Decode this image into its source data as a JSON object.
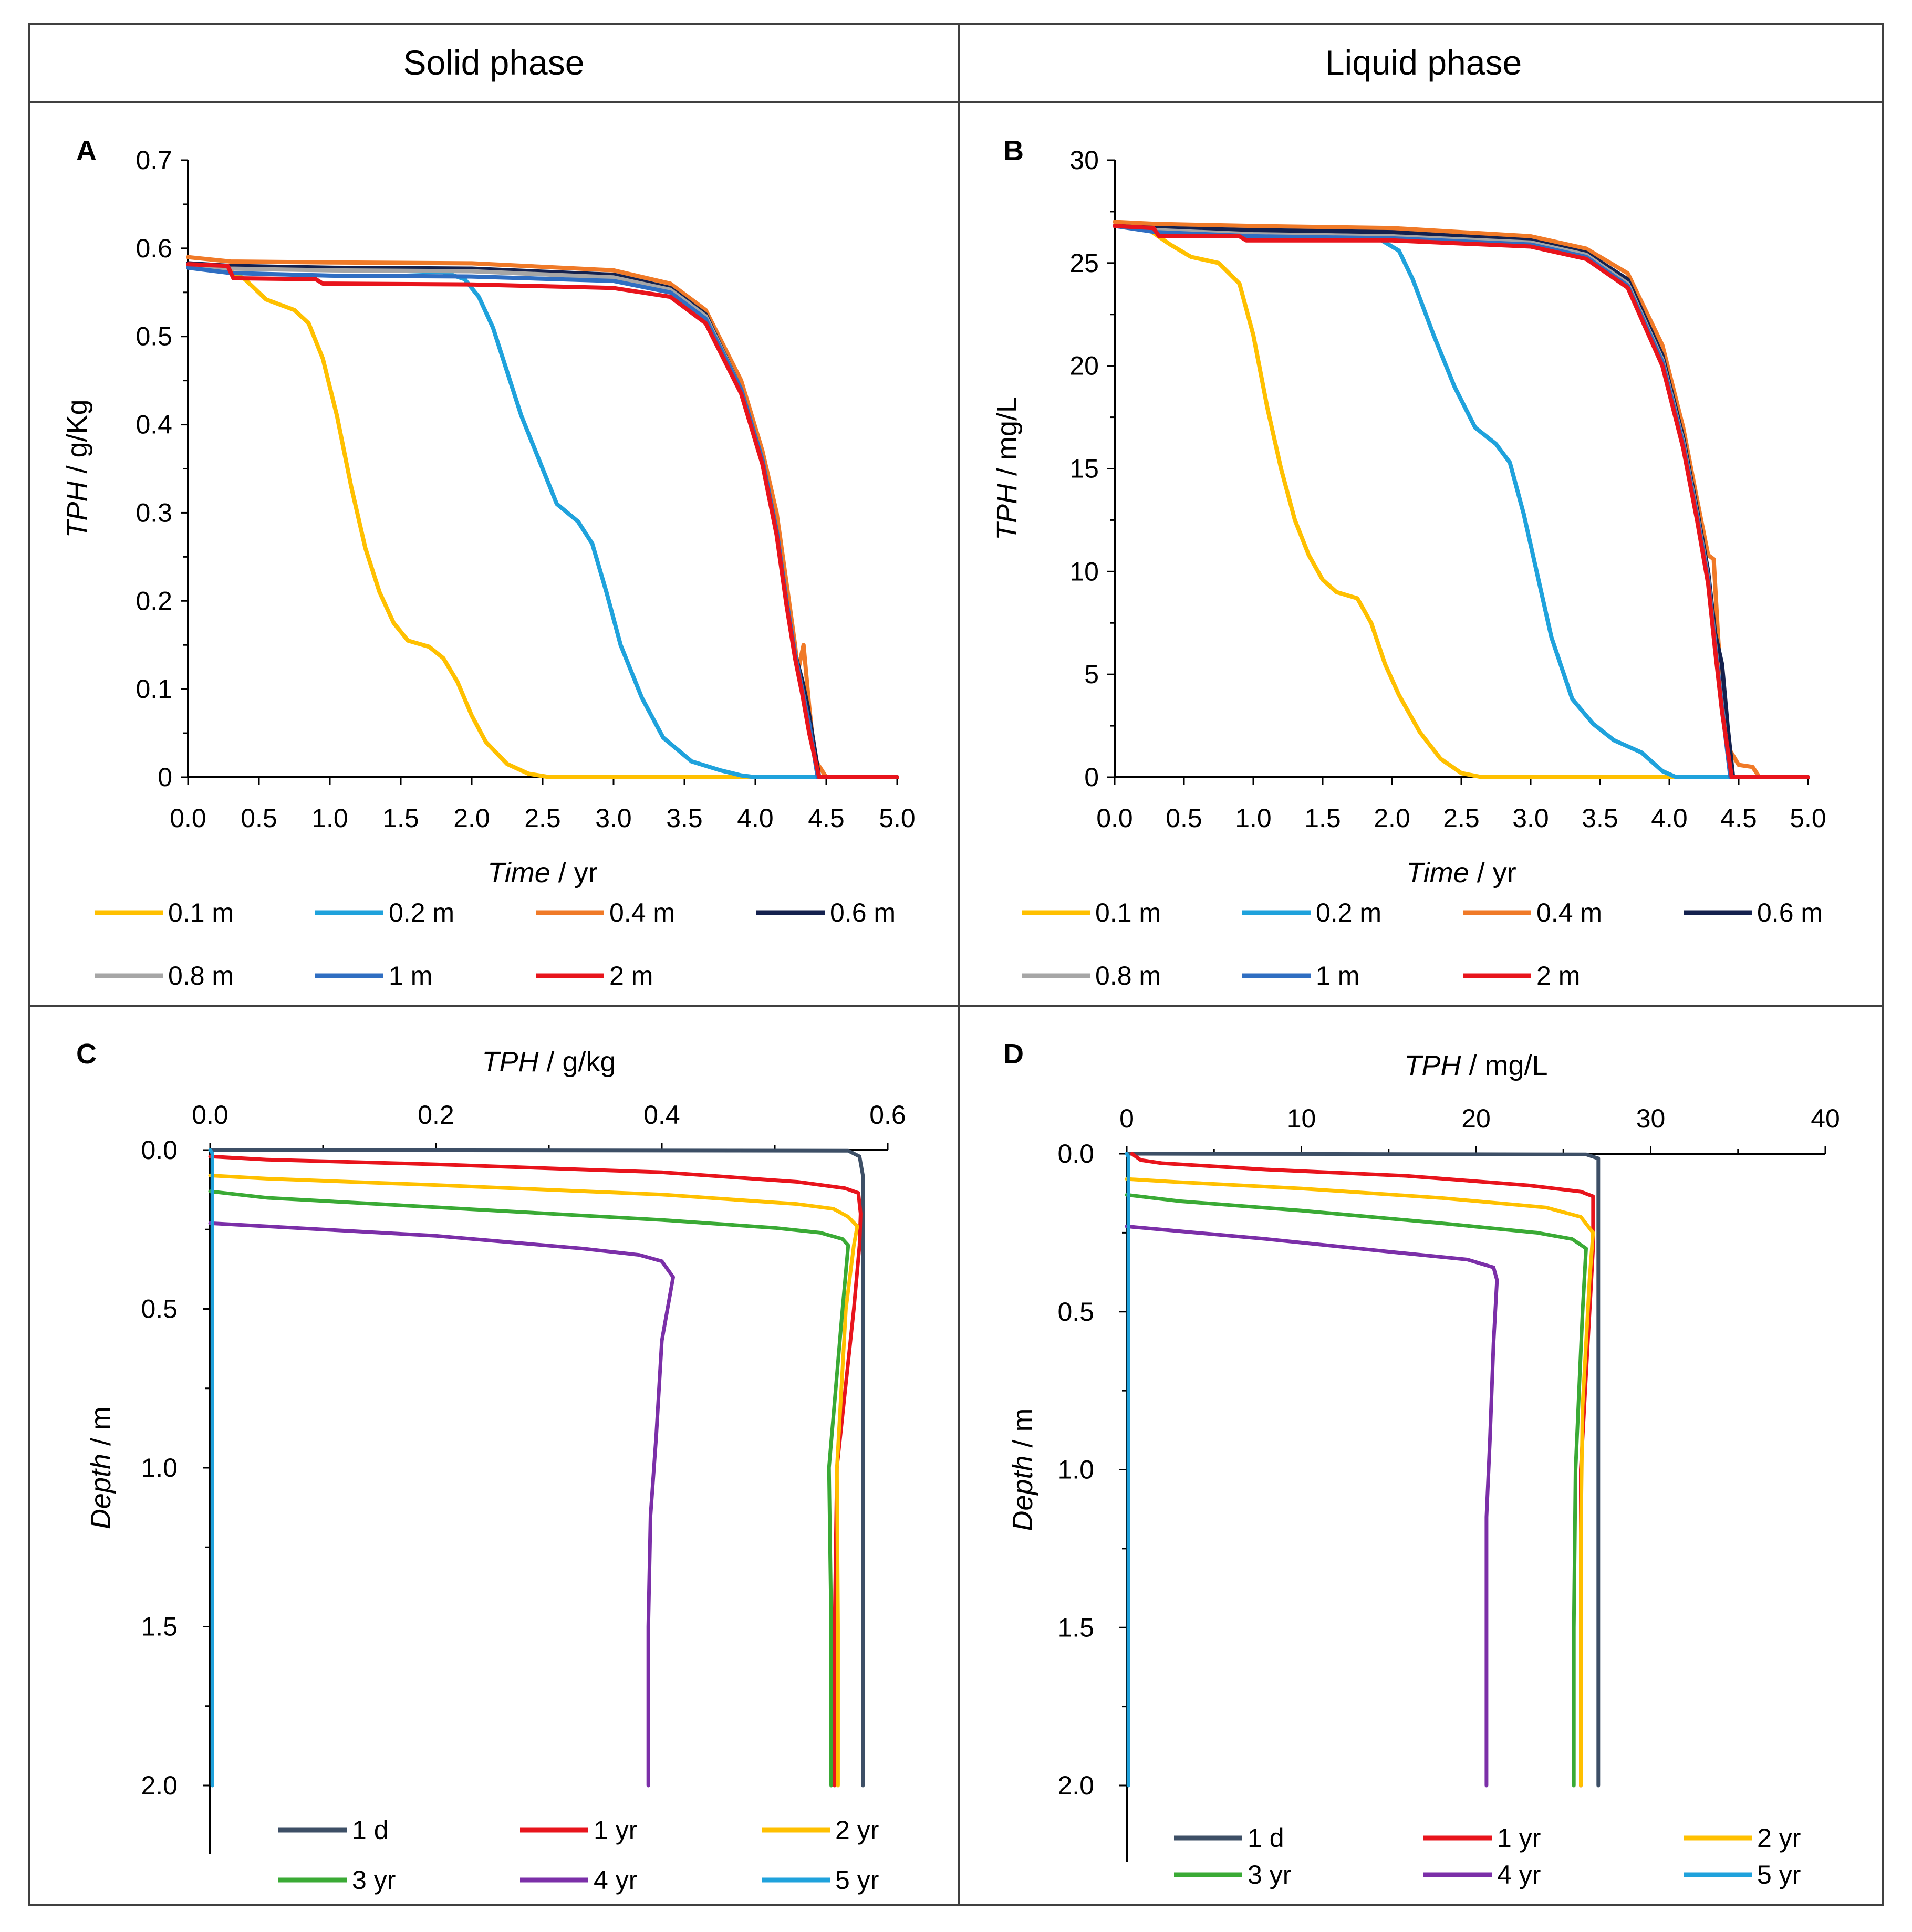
{
  "headers": {
    "solid": "Solid phase",
    "liquid": "Liquid phase"
  },
  "chart_data": [
    {
      "panel": "A",
      "type": "line",
      "xlabel_italic": "Time",
      "xlabel_rest": " / yr",
      "ylabel_italic": "TPH",
      "ylabel_rest": " / g/Kg",
      "xlim": [
        0,
        5
      ],
      "ylim": [
        0,
        0.7
      ],
      "x_ticks": [
        "0.0",
        "0.5",
        "1.0",
        "1.5",
        "2.0",
        "2.5",
        "3.0",
        "3.5",
        "4.0",
        "4.5",
        "5.0"
      ],
      "y_ticks": [
        "0",
        "0.1",
        "0.2",
        "0.3",
        "0.4",
        "0.5",
        "0.6",
        "0.7"
      ],
      "legend_position": "bottom",
      "series": [
        {
          "name": "0.1 m",
          "color": "#FFC000",
          "x": [
            0,
            0.25,
            0.4,
            0.55,
            0.75,
            0.85,
            0.95,
            1.05,
            1.15,
            1.25,
            1.35,
            1.45,
            1.55,
            1.7,
            1.8,
            1.9,
            2.0,
            2.1,
            2.25,
            2.4,
            2.55,
            5.0
          ],
          "y": [
            0.582,
            0.578,
            0.565,
            0.542,
            0.53,
            0.515,
            0.475,
            0.41,
            0.33,
            0.26,
            0.21,
            0.175,
            0.155,
            0.148,
            0.135,
            0.108,
            0.07,
            0.04,
            0.015,
            0.004,
            0,
            0
          ]
        },
        {
          "name": "0.2 m",
          "color": "#1FA2DC",
          "x": [
            0,
            0.3,
            1.0,
            1.8,
            1.95,
            2.05,
            2.15,
            2.25,
            2.35,
            2.5,
            2.6,
            2.75,
            2.85,
            2.95,
            3.05,
            3.2,
            3.35,
            3.55,
            3.75,
            3.9,
            4.0,
            5.0
          ],
          "y": [
            0.58,
            0.578,
            0.577,
            0.573,
            0.565,
            0.545,
            0.51,
            0.46,
            0.41,
            0.35,
            0.31,
            0.29,
            0.265,
            0.21,
            0.15,
            0.09,
            0.045,
            0.018,
            0.008,
            0.002,
            0,
            0
          ]
        },
        {
          "name": "0.4 m",
          "color": "#F07A28",
          "x": [
            0,
            0.3,
            1.0,
            2.0,
            3.0,
            3.4,
            3.65,
            3.9,
            4.05,
            4.15,
            4.22,
            4.28,
            4.3,
            4.34,
            4.38,
            4.42,
            4.5,
            5.0
          ],
          "y": [
            0.59,
            0.585,
            0.584,
            0.583,
            0.575,
            0.56,
            0.53,
            0.45,
            0.37,
            0.3,
            0.22,
            0.15,
            0.12,
            0.15,
            0.08,
            0.02,
            0,
            0
          ]
        },
        {
          "name": "0.6 m",
          "color": "#14214E",
          "x": [
            0,
            0.3,
            1.0,
            2.0,
            3.0,
            3.4,
            3.65,
            3.9,
            4.05,
            4.15,
            4.22,
            4.28,
            4.33,
            4.37,
            4.41,
            4.45,
            5.0
          ],
          "y": [
            0.583,
            0.58,
            0.578,
            0.577,
            0.57,
            0.555,
            0.525,
            0.44,
            0.36,
            0.28,
            0.2,
            0.14,
            0.11,
            0.08,
            0.04,
            0,
            0
          ]
        },
        {
          "name": "0.8 m",
          "color": "#A6A6A6",
          "x": [
            0,
            0.3,
            1.0,
            2.0,
            3.0,
            3.4,
            3.65,
            3.9,
            4.05,
            4.15,
            4.22,
            4.28,
            4.33,
            4.38,
            4.44,
            5.0
          ],
          "y": [
            0.58,
            0.577,
            0.575,
            0.574,
            0.567,
            0.553,
            0.523,
            0.44,
            0.36,
            0.28,
            0.2,
            0.14,
            0.1,
            0.06,
            0,
            0
          ]
        },
        {
          "name": "1 m",
          "color": "#2F6EC2",
          "x": [
            0,
            0.3,
            1.0,
            2.0,
            3.0,
            3.4,
            3.65,
            3.9,
            4.05,
            4.15,
            4.22,
            4.28,
            4.33,
            4.38,
            4.44,
            5.0
          ],
          "y": [
            0.578,
            0.572,
            0.569,
            0.568,
            0.563,
            0.55,
            0.52,
            0.44,
            0.36,
            0.28,
            0.2,
            0.14,
            0.1,
            0.06,
            0,
            0
          ]
        },
        {
          "name": "2 m",
          "color": "#E8141C",
          "x": [
            0,
            0.28,
            0.32,
            0.9,
            0.95,
            2.0,
            3.0,
            3.4,
            3.65,
            3.9,
            4.05,
            4.15,
            4.22,
            4.28,
            4.33,
            4.38,
            4.45,
            5.0
          ],
          "y": [
            0.582,
            0.58,
            0.566,
            0.565,
            0.56,
            0.559,
            0.555,
            0.545,
            0.515,
            0.435,
            0.355,
            0.275,
            0.195,
            0.135,
            0.095,
            0.05,
            0,
            0
          ]
        }
      ]
    },
    {
      "panel": "B",
      "type": "line",
      "xlabel_italic": "Time",
      "xlabel_rest": " / yr",
      "ylabel_italic": "TPH",
      "ylabel_rest": " / mg/L",
      "xlim": [
        0,
        5
      ],
      "ylim": [
        0,
        30
      ],
      "x_ticks": [
        "0.0",
        "0.5",
        "1.0",
        "1.5",
        "2.0",
        "2.5",
        "3.0",
        "3.5",
        "4.0",
        "4.5",
        "5.0"
      ],
      "y_ticks": [
        "0",
        "5",
        "10",
        "15",
        "20",
        "25",
        "30"
      ],
      "legend_position": "bottom",
      "series": [
        {
          "name": "0.1 m",
          "color": "#FFC000",
          "x": [
            0,
            0.25,
            0.4,
            0.55,
            0.75,
            0.9,
            1.0,
            1.1,
            1.2,
            1.3,
            1.4,
            1.5,
            1.6,
            1.75,
            1.85,
            1.95,
            2.05,
            2.2,
            2.35,
            2.5,
            2.65,
            5.0
          ],
          "y": [
            26.8,
            26.6,
            25.9,
            25.3,
            25.0,
            24.0,
            21.5,
            18.0,
            15.0,
            12.5,
            10.8,
            9.6,
            9.0,
            8.7,
            7.5,
            5.5,
            4.0,
            2.2,
            0.9,
            0.2,
            0,
            0
          ]
        },
        {
          "name": "0.2 m",
          "color": "#1FA2DC",
          "x": [
            0,
            0.3,
            1.0,
            1.9,
            2.05,
            2.15,
            2.3,
            2.45,
            2.6,
            2.75,
            2.85,
            2.95,
            3.05,
            3.15,
            3.3,
            3.45,
            3.6,
            3.8,
            3.95,
            4.05,
            5.0
          ],
          "y": [
            26.8,
            26.6,
            26.5,
            26.2,
            25.6,
            24.2,
            21.5,
            19.0,
            17.0,
            16.2,
            15.3,
            12.8,
            9.8,
            6.8,
            3.8,
            2.6,
            1.8,
            1.2,
            0.3,
            0,
            0
          ]
        },
        {
          "name": "0.4 m",
          "color": "#F07A28",
          "x": [
            0,
            0.3,
            1.0,
            2.0,
            3.0,
            3.4,
            3.7,
            3.95,
            4.1,
            4.2,
            4.28,
            4.32,
            4.35,
            4.38,
            4.42,
            4.5,
            4.6,
            4.65,
            5.0
          ],
          "y": [
            27.0,
            26.9,
            26.8,
            26.7,
            26.3,
            25.7,
            24.5,
            21.0,
            17.0,
            13.5,
            10.8,
            10.6,
            7.0,
            4.0,
            1.5,
            0.6,
            0.5,
            0,
            0
          ]
        },
        {
          "name": "0.6 m",
          "color": "#14214E",
          "x": [
            0,
            0.3,
            1.0,
            2.0,
            3.0,
            3.4,
            3.7,
            3.95,
            4.1,
            4.2,
            4.28,
            4.33,
            4.38,
            4.42,
            4.46,
            5.0
          ],
          "y": [
            26.8,
            26.7,
            26.6,
            26.5,
            26.1,
            25.5,
            24.2,
            20.5,
            16.5,
            13.0,
            10.0,
            7.0,
            5.5,
            2.5,
            0,
            0
          ]
        },
        {
          "name": "0.8 m",
          "color": "#A6A6A6",
          "x": [
            0,
            0.3,
            1.0,
            2.0,
            3.0,
            3.4,
            3.7,
            3.95,
            4.1,
            4.2,
            4.28,
            4.33,
            4.38,
            4.44,
            5.0
          ],
          "y": [
            26.8,
            26.6,
            26.4,
            26.3,
            26.0,
            25.4,
            24.0,
            20.3,
            16.3,
            12.8,
            9.7,
            6.5,
            3.5,
            0,
            0
          ]
        },
        {
          "name": "1 m",
          "color": "#2F6EC2",
          "x": [
            0,
            0.3,
            1.0,
            2.0,
            3.0,
            3.4,
            3.7,
            3.95,
            4.1,
            4.2,
            4.28,
            4.33,
            4.38,
            4.44,
            5.0
          ],
          "y": [
            26.8,
            26.5,
            26.3,
            26.2,
            25.9,
            25.3,
            23.9,
            20.2,
            16.2,
            12.7,
            9.6,
            6.4,
            3.4,
            0,
            0
          ]
        },
        {
          "name": "2 m",
          "color": "#E8141C",
          "x": [
            0,
            0.28,
            0.32,
            0.9,
            0.95,
            2.0,
            3.0,
            3.4,
            3.7,
            3.95,
            4.1,
            4.2,
            4.28,
            4.33,
            4.38,
            4.45,
            5.0
          ],
          "y": [
            26.8,
            26.7,
            26.3,
            26.3,
            26.1,
            26.1,
            25.8,
            25.2,
            23.8,
            20.0,
            16.0,
            12.5,
            9.4,
            6.2,
            3.2,
            0,
            0
          ]
        }
      ]
    },
    {
      "panel": "C",
      "type": "line",
      "xlabel_italic": "TPH",
      "xlabel_rest": " / g/kg",
      "ylabel_italic": "Depth",
      "ylabel_rest": " / m",
      "xlim": [
        0,
        0.6
      ],
      "ylim": [
        0,
        2.2
      ],
      "x_ticks": [
        "0.0",
        "0.2",
        "0.4",
        "0.6"
      ],
      "y_ticks": [
        "0.0",
        "0.5",
        "1.0",
        "1.5",
        "2.0"
      ],
      "legend_position": "bottom",
      "series": [
        {
          "name": "1 d",
          "color": "#3D4F66",
          "x": [
            0,
            0.565,
            0.575,
            0.578,
            0.578
          ],
          "y": [
            0,
            0.002,
            0.02,
            0.08,
            2.0
          ]
        },
        {
          "name": "1 yr",
          "color": "#E8141C",
          "x": [
            0,
            0.05,
            0.2,
            0.4,
            0.52,
            0.562,
            0.574,
            0.576,
            0.575,
            0.57,
            0.555,
            0.553,
            0.553
          ],
          "y": [
            0.02,
            0.03,
            0.045,
            0.07,
            0.1,
            0.12,
            0.135,
            0.2,
            0.3,
            0.5,
            1.0,
            1.5,
            2.0
          ]
        },
        {
          "name": "2 yr",
          "color": "#FFC000",
          "x": [
            0,
            0.05,
            0.2,
            0.4,
            0.52,
            0.552,
            0.565,
            0.573,
            0.57,
            0.563,
            0.555,
            0.556,
            0.556
          ],
          "y": [
            0.08,
            0.09,
            0.11,
            0.14,
            0.17,
            0.185,
            0.21,
            0.24,
            0.3,
            0.5,
            1.0,
            1.5,
            2.0
          ]
        },
        {
          "name": "3 yr",
          "color": "#3AAA35",
          "x": [
            0,
            0.05,
            0.2,
            0.4,
            0.5,
            0.54,
            0.56,
            0.565,
            0.56,
            0.548,
            0.55,
            0.55
          ],
          "y": [
            0.13,
            0.15,
            0.18,
            0.22,
            0.245,
            0.26,
            0.28,
            0.3,
            0.5,
            1.0,
            1.5,
            2.0
          ]
        },
        {
          "name": "4 yr",
          "color": "#7B2FA8",
          "x": [
            0,
            0.05,
            0.2,
            0.33,
            0.38,
            0.4,
            0.41,
            0.4,
            0.395,
            0.39,
            0.388,
            0.388
          ],
          "y": [
            0.23,
            0.24,
            0.27,
            0.31,
            0.33,
            0.35,
            0.4,
            0.6,
            0.9,
            1.15,
            1.5,
            2.0
          ]
        },
        {
          "name": "5 yr",
          "color": "#1FA2DC",
          "x": [
            0,
            0.002,
            0.002
          ],
          "y": [
            0,
            0.01,
            2.0
          ]
        }
      ]
    },
    {
      "panel": "D",
      "type": "line",
      "xlabel_italic": "TPH",
      "xlabel_rest": " / mg/L",
      "ylabel_italic": "Depth",
      "ylabel_rest": " / m",
      "xlim": [
        0,
        40
      ],
      "ylim": [
        0,
        2.2
      ],
      "x_ticks": [
        "0",
        "10",
        "20",
        "30",
        "40"
      ],
      "y_ticks": [
        "0.0",
        "0.5",
        "1.0",
        "1.5",
        "2.0"
      ],
      "legend_position": "bottom",
      "series": [
        {
          "name": "1 d",
          "color": "#3D4F66",
          "x": [
            0,
            26.3,
            27.0,
            27.0,
            27.0
          ],
          "y": [
            0,
            0.002,
            0.015,
            0.05,
            2.0
          ]
        },
        {
          "name": "1 yr",
          "color": "#E8141C",
          "x": [
            0.3,
            0.8,
            2.0,
            8.0,
            16.0,
            23.0,
            26.0,
            26.7,
            26.7,
            26.4,
            26.0,
            26.0
          ],
          "y": [
            0.0,
            0.02,
            0.03,
            0.05,
            0.07,
            0.1,
            0.12,
            0.135,
            0.3,
            0.6,
            1.0,
            2.0
          ]
        },
        {
          "name": "2 yr",
          "color": "#FFC000",
          "x": [
            0,
            3.0,
            10.0,
            18.0,
            24.0,
            26.0,
            26.7,
            26.5,
            26.1,
            26.0,
            26.0
          ],
          "y": [
            0.08,
            0.09,
            0.11,
            0.14,
            0.17,
            0.2,
            0.25,
            0.4,
            0.8,
            1.2,
            2.0
          ]
        },
        {
          "name": "3 yr",
          "color": "#3AAA35",
          "x": [
            0,
            3.0,
            10.0,
            18.0,
            23.5,
            25.5,
            26.3,
            26.1,
            25.7,
            25.6,
            25.6
          ],
          "y": [
            0.13,
            0.15,
            0.18,
            0.22,
            0.25,
            0.27,
            0.3,
            0.5,
            1.0,
            1.5,
            2.0
          ]
        },
        {
          "name": "4 yr",
          "color": "#7B2FA8",
          "x": [
            0,
            2.0,
            8.0,
            15.0,
            19.5,
            21.0,
            21.2,
            21.0,
            20.8,
            20.6,
            20.6
          ],
          "y": [
            0.23,
            0.24,
            0.27,
            0.31,
            0.335,
            0.36,
            0.4,
            0.6,
            0.9,
            1.15,
            2.0
          ]
        },
        {
          "name": "5 yr",
          "color": "#1FA2DC",
          "x": [
            0,
            0.1,
            0.1
          ],
          "y": [
            0,
            0.01,
            2.0
          ]
        }
      ]
    }
  ]
}
